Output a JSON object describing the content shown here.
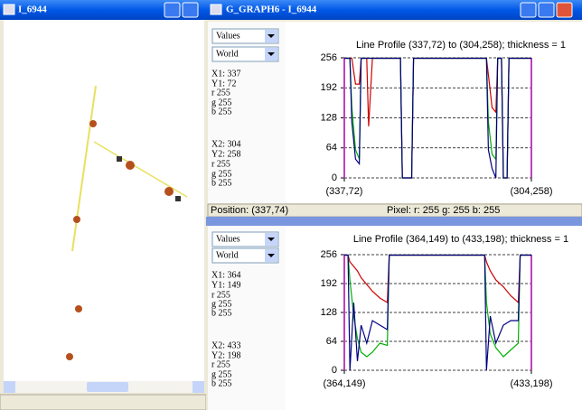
{
  "windows": {
    "image": {
      "title": "I_6944"
    },
    "graph": {
      "title": "G_GRAPH6 - I_6944"
    }
  },
  "panels": [
    {
      "dropdowns": [
        "Values",
        "World"
      ],
      "info": [
        "X1: 337",
        "Y1: 72",
        "r 255",
        "g 255",
        "b 255",
        "X2: 304",
        "Y2: 258",
        "r 255",
        "g 255",
        "b 255"
      ],
      "status": {
        "position": "Position: (337,74)",
        "pixel": "Pixel:  r: 255  g: 255  b: 255"
      }
    },
    {
      "dropdowns": [
        "Values",
        "World"
      ],
      "info": [
        "X1: 364",
        "Y1: 149",
        "r 255",
        "g 255",
        "b 255",
        "X2: 433",
        "Y2: 198",
        "r 255",
        "g 255",
        "b 255"
      ]
    }
  ],
  "chart_data": [
    {
      "type": "line",
      "title": "Line Profile (337,72) to (304,258); thickness = 1",
      "x": [
        0,
        3,
        4,
        6,
        8,
        9,
        12,
        13,
        15,
        30,
        31,
        36,
        37,
        76,
        77,
        79,
        81,
        82,
        84,
        85,
        87,
        88,
        100
      ],
      "xlim": [
        0,
        100
      ],
      "xticks": [
        {
          "value": 0,
          "label": "(337,72)"
        },
        {
          "value": 100,
          "label": "(304,258)"
        }
      ],
      "ylim": [
        0,
        256
      ],
      "yticks": [
        0,
        64,
        128,
        192,
        256
      ],
      "grid": true,
      "series": [
        {
          "color": "#cc0000",
          "values": [
            255,
            255,
            255,
            200,
            200,
            255,
            255,
            110,
            255,
            255,
            0,
            0,
            255,
            255,
            220,
            150,
            140,
            255,
            255,
            0,
            0,
            255,
            255
          ]
        },
        {
          "color": "#00b000",
          "values": [
            255,
            255,
            150,
            60,
            40,
            255,
            255,
            255,
            255,
            255,
            0,
            0,
            255,
            255,
            120,
            50,
            40,
            255,
            255,
            0,
            0,
            255,
            255
          ]
        },
        {
          "color": "#000080",
          "values": [
            255,
            255,
            120,
            40,
            30,
            255,
            255,
            255,
            255,
            255,
            0,
            0,
            255,
            255,
            60,
            20,
            0,
            255,
            255,
            0,
            0,
            255,
            255
          ]
        }
      ]
    },
    {
      "type": "line",
      "title": "Line Profile (364,149) to (433,198); thickness = 1",
      "x": [
        0,
        2,
        3,
        5,
        7,
        9,
        12,
        15,
        19,
        23,
        24,
        25,
        74,
        75,
        76,
        78,
        81,
        85,
        89,
        93,
        94,
        95,
        100
      ],
      "xlim": [
        0,
        100
      ],
      "xticks": [
        {
          "value": 0,
          "label": "(364,149)"
        },
        {
          "value": 100,
          "label": "(433,198)"
        }
      ],
      "ylim": [
        0,
        256
      ],
      "yticks": [
        0,
        64,
        128,
        192,
        256
      ],
      "grid": true,
      "series": [
        {
          "color": "#cc0000",
          "values": [
            255,
            255,
            240,
            230,
            220,
            205,
            190,
            175,
            160,
            150,
            255,
            255,
            255,
            255,
            240,
            220,
            200,
            185,
            165,
            150,
            255,
            255,
            255
          ]
        },
        {
          "color": "#00b000",
          "values": [
            255,
            255,
            200,
            120,
            70,
            40,
            30,
            40,
            60,
            55,
            255,
            255,
            255,
            255,
            150,
            80,
            50,
            30,
            45,
            60,
            255,
            255,
            255
          ]
        },
        {
          "color": "#000080",
          "values": [
            255,
            255,
            0,
            150,
            20,
            100,
            60,
            110,
            100,
            90,
            255,
            255,
            255,
            255,
            0,
            120,
            60,
            100,
            110,
            110,
            255,
            255,
            255
          ]
        }
      ]
    }
  ]
}
